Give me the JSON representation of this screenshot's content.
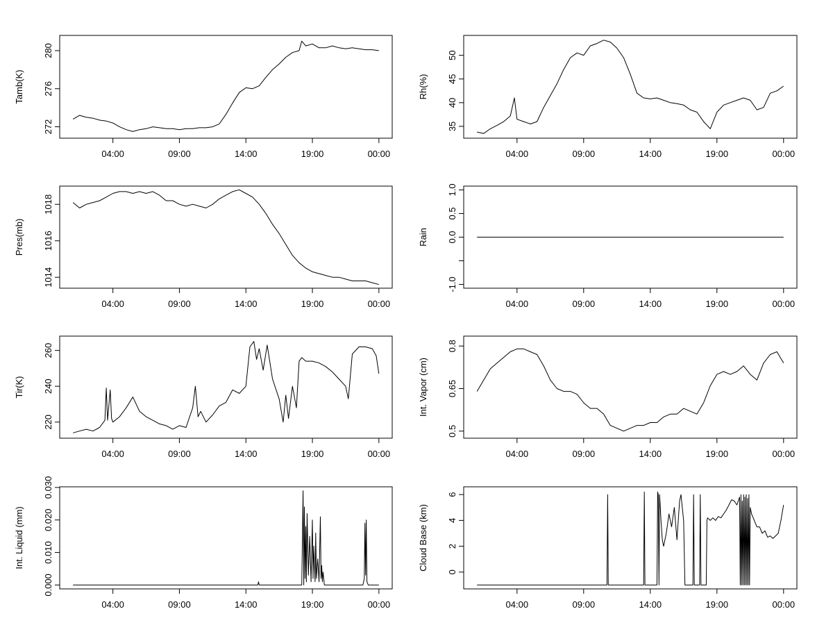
{
  "chart_data": [
    {
      "type": "line",
      "ylabel": "Tamb(K)",
      "ylim": [
        270.8,
        281.6
      ],
      "yticks": [
        272,
        276,
        280
      ],
      "x_ticks": [
        "04:00",
        "09:00",
        "14:00",
        "19:00",
        "00:00"
      ],
      "series": [
        {
          "x": [
            1,
            1.5,
            2,
            2.5,
            3,
            3.5,
            4,
            4.5,
            5,
            5.5,
            6,
            6.5,
            7,
            7.5,
            8,
            8.5,
            9,
            9.5,
            10,
            10.5,
            11,
            11.5,
            12,
            12.5,
            13,
            13.5,
            14,
            14.5,
            15,
            15.5,
            16,
            16.5,
            17,
            17.5,
            18,
            18.2,
            18.5,
            19,
            19.5,
            20,
            20.5,
            21,
            21.5,
            22,
            22.5,
            23,
            23.5,
            24
          ],
          "y": [
            272.8,
            273.2,
            273,
            272.9,
            272.7,
            272.6,
            272.4,
            272,
            271.7,
            271.5,
            271.7,
            271.8,
            272,
            271.9,
            271.8,
            271.8,
            271.7,
            271.8,
            271.8,
            271.9,
            271.9,
            272,
            272.3,
            273.3,
            274.5,
            275.6,
            276.1,
            276,
            276.3,
            277.2,
            278,
            278.6,
            279.3,
            279.8,
            280,
            281,
            280.5,
            280.7,
            280.3,
            280.3,
            280.5,
            280.3,
            280.2,
            280.3,
            280.2,
            280.1,
            280.1,
            280
          ]
        }
      ]
    },
    {
      "type": "line",
      "ylabel": "Rh(%)",
      "ylim": [
        32.5,
        54.2
      ],
      "yticks": [
        35,
        40,
        45,
        50
      ],
      "x_ticks": [
        "04:00",
        "09:00",
        "14:00",
        "19:00",
        "00:00"
      ],
      "series": [
        {
          "x": [
            1,
            1.5,
            2,
            2.5,
            3,
            3.5,
            3.8,
            4,
            4.5,
            5,
            5.5,
            6,
            6.5,
            7,
            7.5,
            8,
            8.5,
            9,
            9.5,
            10,
            10.5,
            11,
            11.5,
            12,
            12.5,
            13,
            13.5,
            14,
            14.5,
            15,
            15.5,
            16,
            16.5,
            17,
            17.5,
            18,
            18.5,
            19,
            19.5,
            20,
            20.5,
            21,
            21.5,
            22,
            22.5,
            23,
            23.5,
            24
          ],
          "y": [
            33.8,
            33.5,
            34.5,
            35.2,
            36,
            37.2,
            41,
            36.5,
            36,
            35.5,
            36,
            39,
            41.5,
            44,
            47,
            49.5,
            50.5,
            50,
            52,
            52.5,
            53.2,
            52.8,
            51.5,
            49.5,
            46,
            42,
            41,
            40.8,
            41,
            40.5,
            40,
            39.8,
            39.5,
            38.5,
            38,
            36,
            34.5,
            38,
            39.5,
            40,
            40.5,
            41,
            40.5,
            38.5,
            39,
            42,
            42.5,
            43.5
          ]
        }
      ]
    },
    {
      "type": "line",
      "ylabel": "Pres(mb)",
      "ylim": [
        1013.4,
        1019.0
      ],
      "yticks": [
        1014,
        1016,
        1018
      ],
      "x_ticks": [
        "04:00",
        "09:00",
        "14:00",
        "19:00",
        "00:00"
      ],
      "series": [
        {
          "x": [
            1,
            1.5,
            2,
            2.5,
            3,
            3.5,
            4,
            4.5,
            5,
            5.5,
            6,
            6.5,
            7,
            7.5,
            8,
            8.5,
            9,
            9.5,
            10,
            10.5,
            11,
            11.5,
            12,
            12.5,
            13,
            13.5,
            14,
            14.5,
            15,
            15.5,
            16,
            16.5,
            17,
            17.5,
            18,
            18.5,
            19,
            19.5,
            20,
            20.5,
            21,
            21.5,
            22,
            22.5,
            23,
            23.5,
            24
          ],
          "y": [
            1018.1,
            1017.8,
            1018,
            1018.1,
            1018.2,
            1018.4,
            1018.6,
            1018.7,
            1018.7,
            1018.6,
            1018.7,
            1018.6,
            1018.7,
            1018.5,
            1018.2,
            1018.2,
            1018,
            1017.9,
            1018,
            1017.9,
            1017.8,
            1018,
            1018.3,
            1018.5,
            1018.7,
            1018.8,
            1018.6,
            1018.4,
            1018,
            1017.5,
            1016.9,
            1016.4,
            1015.8,
            1015.2,
            1014.8,
            1014.5,
            1014.3,
            1014.2,
            1014.1,
            1014,
            1014,
            1013.9,
            1013.8,
            1013.8,
            1013.8,
            1013.7,
            1013.6
          ]
        }
      ]
    },
    {
      "type": "line",
      "ylabel": "Rain",
      "ylim": [
        -1.08,
        1.08
      ],
      "yticks": [
        -1.0,
        -0.5,
        0.0,
        0.5,
        1.0
      ],
      "ytick_labels": [
        "-1.0",
        "",
        "0.0",
        "0.5",
        "1.0"
      ],
      "x_ticks": [
        "04:00",
        "09:00",
        "14:00",
        "19:00",
        "00:00"
      ],
      "series": [
        {
          "x": [
            1,
            24
          ],
          "y": [
            0,
            0
          ]
        }
      ]
    },
    {
      "type": "line",
      "ylabel": "Tir(K)",
      "ylim": [
        211,
        268
      ],
      "yticks": [
        220,
        240,
        260
      ],
      "x_ticks": [
        "04:00",
        "09:00",
        "14:00",
        "19:00",
        "00:00"
      ],
      "series": [
        {
          "x": [
            1,
            1.5,
            2,
            2.5,
            3,
            3.4,
            3.5,
            3.6,
            3.8,
            3.9,
            4,
            4.5,
            5,
            5.5,
            6,
            6.5,
            7,
            7.5,
            8,
            8.5,
            9,
            9.5,
            10,
            10.2,
            10.4,
            10.6,
            11,
            11.5,
            12,
            12.5,
            13,
            13.5,
            14,
            14.3,
            14.6,
            14.8,
            15,
            15.3,
            15.6,
            16,
            16.5,
            16.8,
            17,
            17.2,
            17.5,
            17.8,
            18,
            18.2,
            18.5,
            19,
            19.5,
            20,
            20.5,
            21,
            21.5,
            21.7,
            22,
            22.5,
            23,
            23.5,
            23.8,
            24
          ],
          "y": [
            214,
            215,
            216,
            215,
            217,
            221,
            239,
            221,
            238,
            222,
            220,
            223,
            228,
            234,
            226,
            223,
            221,
            219,
            218,
            216,
            218,
            217,
            228,
            240,
            223,
            226,
            220,
            224,
            229,
            231,
            238,
            236,
            240,
            262,
            265,
            255,
            261,
            249,
            263,
            244,
            233,
            220,
            235,
            222,
            240,
            228,
            254,
            256,
            254,
            254,
            253,
            251,
            248,
            244,
            240,
            233,
            258,
            262,
            262,
            261,
            257,
            247
          ]
        }
      ]
    },
    {
      "type": "line",
      "ylabel": "Int. Vapor (cm)",
      "ylim": [
        0.475,
        0.835
      ],
      "yticks": [
        0.5,
        0.65,
        0.8
      ],
      "x_ticks": [
        "04:00",
        "09:00",
        "14:00",
        "19:00",
        "00:00"
      ],
      "series": [
        {
          "x": [
            1,
            1.5,
            2,
            2.5,
            3,
            3.5,
            4,
            4.5,
            5,
            5.5,
            6,
            6.5,
            7,
            7.5,
            8,
            8.5,
            9,
            9.5,
            10,
            10.5,
            11,
            11.5,
            12,
            12.5,
            13,
            13.5,
            14,
            14.5,
            15,
            15.5,
            16,
            16.5,
            17,
            17.5,
            18,
            18.5,
            19,
            19.5,
            20,
            20.5,
            21,
            21.5,
            22,
            22.5,
            23,
            23.5,
            24
          ],
          "y": [
            0.64,
            0.68,
            0.72,
            0.74,
            0.76,
            0.78,
            0.79,
            0.79,
            0.78,
            0.77,
            0.73,
            0.68,
            0.65,
            0.64,
            0.64,
            0.63,
            0.6,
            0.58,
            0.58,
            0.56,
            0.52,
            0.51,
            0.5,
            0.51,
            0.52,
            0.52,
            0.53,
            0.53,
            0.55,
            0.56,
            0.56,
            0.58,
            0.57,
            0.56,
            0.6,
            0.66,
            0.7,
            0.71,
            0.7,
            0.71,
            0.73,
            0.7,
            0.68,
            0.74,
            0.77,
            0.78,
            0.74
          ]
        }
      ]
    },
    {
      "type": "line",
      "ylabel": "Int. Liquid (mm)",
      "ylim": [
        -0.0012,
        0.0302
      ],
      "yticks": [
        0.0,
        0.01,
        0.02,
        0.03
      ],
      "ytick_labels": [
        "0.000",
        "0.010",
        "0.020",
        "0.030"
      ],
      "x_ticks": [
        "04:00",
        "09:00",
        "14:00",
        "19:00",
        "00:00"
      ],
      "series": [
        {
          "x": [
            1,
            14.9,
            14.95,
            15,
            18.2,
            18.3,
            18.35,
            18.4,
            18.45,
            18.5,
            18.55,
            18.6,
            18.7,
            18.8,
            18.9,
            19,
            19.05,
            19.1,
            19.2,
            19.25,
            19.3,
            19.4,
            19.5,
            19.6,
            19.65,
            19.7,
            19.75,
            19.8,
            19.9,
            22.8,
            22.9,
            22.95,
            23,
            23.05,
            23.1,
            23.2,
            24
          ],
          "y": [
            0,
            0,
            0.001,
            0,
            0,
            0.029,
            0,
            0.024,
            0.002,
            0.018,
            0.001,
            0.022,
            0.003,
            0.015,
            0.001,
            0.02,
            0.002,
            0.012,
            0.001,
            0.016,
            0.002,
            0.008,
            0.001,
            0.021,
            0.002,
            0.006,
            0.001,
            0.004,
            0,
            0,
            0.002,
            0.019,
            0.003,
            0.02,
            0.001,
            0,
            0
          ]
        }
      ]
    },
    {
      "type": "line",
      "ylabel": "Cloud Base (km)",
      "ylim": [
        -1.3,
        6.6
      ],
      "yticks": [
        0,
        2,
        4,
        6
      ],
      "x_ticks": [
        "04:00",
        "09:00",
        "14:00",
        "19:00",
        "00:00"
      ],
      "series": [
        {
          "x": [
            1,
            10.75,
            10.8,
            10.85,
            13.5,
            13.55,
            13.6,
            14.5,
            14.55,
            14.6,
            14.65,
            14.7,
            14.8,
            14.9,
            15,
            15.2,
            15.4,
            15.6,
            15.8,
            16,
            16.2,
            16.3,
            16.5,
            16.6,
            17.2,
            17.25,
            17.3,
            17.7,
            17.75,
            17.8,
            18.2,
            18.25,
            18.3,
            18.5,
            18.7,
            18.9,
            19.1,
            19.3,
            19.5,
            19.7,
            19.9,
            20.1,
            20.3,
            20.5,
            20.7,
            20.75,
            20.8,
            20.85,
            20.9,
            20.95,
            21,
            21.05,
            21.1,
            21.15,
            21.2,
            21.25,
            21.3,
            21.35,
            21.4,
            21.45,
            21.5,
            21.6,
            21.8,
            22,
            22.2,
            22.4,
            22.6,
            22.8,
            23,
            23.2,
            23.4,
            23.6,
            23.8,
            24
          ],
          "y": [
            -1,
            -1,
            6,
            -1,
            -1,
            6.2,
            -1,
            -1,
            6.2,
            6,
            -1,
            6,
            4,
            2.5,
            2,
            3,
            4.5,
            3.5,
            5,
            2.5,
            5.5,
            6,
            4,
            -1,
            -1,
            6,
            -1,
            -1,
            6,
            -1,
            -1,
            4,
            4.2,
            4,
            4.2,
            4,
            4.3,
            4.2,
            4.5,
            4.8,
            5.2,
            5.6,
            5.5,
            5.2,
            5.8,
            -1,
            6,
            -1,
            5.5,
            -1,
            6,
            -1,
            5.8,
            -1,
            6,
            -1,
            5.7,
            -1,
            6,
            -1,
            5,
            4.5,
            4,
            3.5,
            3.5,
            3,
            3.2,
            2.7,
            2.8,
            2.6,
            2.8,
            3,
            4,
            5.2
          ]
        }
      ]
    }
  ]
}
